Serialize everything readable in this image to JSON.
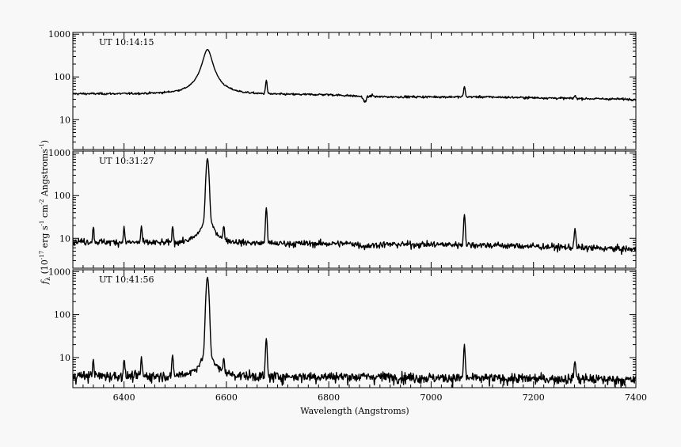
{
  "chart_data": {
    "type": "line",
    "xlabel": "Wavelength (Angstroms)",
    "ylabel": {
      "f": "f",
      "lambda": "λ",
      "open": " (10",
      "exp1": "-17",
      "mid1": " erg s",
      "exp2": "-1",
      "mid2": " cm",
      "exp3": "-2",
      "mid3": " Angstroms",
      "exp4": "-1",
      "close": ")"
    },
    "xlim": [
      6300,
      7400
    ],
    "x_ticks": [
      6400,
      6600,
      6800,
      7000,
      7200,
      7400
    ],
    "y_scale": "log",
    "y_tick_values": [
      10,
      100,
      1000
    ],
    "y_tick_labels": [
      "10",
      "100",
      "1000"
    ],
    "grid": false,
    "legend": "none",
    "panels": [
      {
        "title": "UT 10:14:15",
        "ylim": [
          2,
          1100
        ],
        "continuum": [
          [
            6300,
            40
          ],
          [
            6500,
            39
          ],
          [
            6640,
            38
          ],
          [
            6800,
            38
          ],
          [
            6860,
            35
          ],
          [
            6900,
            34
          ],
          [
            7100,
            34
          ],
          [
            7300,
            31
          ],
          [
            7400,
            30
          ]
        ],
        "lines": [
          {
            "center": 6563,
            "peak": 400,
            "width": 9,
            "shape": "lorentz"
          },
          {
            "center": 6678,
            "peak": 43,
            "width": 1.4,
            "shape": "gauss"
          },
          {
            "center": 7065,
            "peak": 26,
            "width": 1.4,
            "shape": "gauss"
          },
          {
            "center": 7281,
            "peak": 5,
            "width": 1.5,
            "shape": "gauss"
          },
          {
            "center": 6870,
            "peak": -9,
            "width": 3,
            "shape": "gauss"
          },
          {
            "center": 6885,
            "peak": 3,
            "width": 2,
            "shape": "gauss"
          }
        ],
        "noise": 0.03
      },
      {
        "title": "UT 10:31:27",
        "ylim": [
          2,
          1100
        ],
        "continuum": [
          [
            6300,
            8.5
          ],
          [
            6500,
            7.5
          ],
          [
            6700,
            7.5
          ],
          [
            6850,
            7.5
          ],
          [
            6870,
            6.5
          ],
          [
            6900,
            7.2
          ],
          [
            7000,
            7.2
          ],
          [
            7100,
            7.0
          ],
          [
            7300,
            6.0
          ],
          [
            7400,
            5.5
          ]
        ],
        "lines": [
          {
            "center": 6563,
            "peak": 700,
            "width": 2.2,
            "shape": "gauss"
          },
          {
            "center": 6563,
            "peak": 25,
            "width": 10,
            "shape": "lorentz"
          },
          {
            "center": 6678,
            "peak": 45,
            "width": 1.3,
            "shape": "gauss"
          },
          {
            "center": 7065,
            "peak": 30,
            "width": 1.3,
            "shape": "gauss"
          },
          {
            "center": 7281,
            "peak": 10,
            "width": 1.5,
            "shape": "gauss"
          },
          {
            "center": 6495,
            "peak": 11,
            "width": 1.2,
            "shape": "gauss"
          },
          {
            "center": 6400,
            "peak": 10,
            "width": 1.2,
            "shape": "gauss"
          },
          {
            "center": 6434,
            "peak": 11,
            "width": 1.2,
            "shape": "gauss"
          },
          {
            "center": 6595,
            "peak": 10,
            "width": 1.2,
            "shape": "gauss"
          },
          {
            "center": 6340,
            "peak": 10,
            "width": 1.2,
            "shape": "gauss"
          }
        ],
        "noise": 0.09
      },
      {
        "title": "UT 10:41:56",
        "ylim": [
          2,
          1100
        ],
        "continuum": [
          [
            6300,
            3.8
          ],
          [
            6500,
            3.6
          ],
          [
            6700,
            3.6
          ],
          [
            6900,
            3.6
          ],
          [
            7000,
            3.4
          ],
          [
            7100,
            3.3
          ],
          [
            7300,
            3.2
          ],
          [
            7400,
            3.0
          ]
        ],
        "lines": [
          {
            "center": 6563,
            "peak": 720,
            "width": 2.2,
            "shape": "gauss"
          },
          {
            "center": 6563,
            "peak": 12,
            "width": 10,
            "shape": "lorentz"
          },
          {
            "center": 6678,
            "peak": 24,
            "width": 1.3,
            "shape": "gauss"
          },
          {
            "center": 7065,
            "peak": 16,
            "width": 1.3,
            "shape": "gauss"
          },
          {
            "center": 7281,
            "peak": 5,
            "width": 1.5,
            "shape": "gauss"
          },
          {
            "center": 6495,
            "peak": 7,
            "width": 1.2,
            "shape": "gauss"
          },
          {
            "center": 6400,
            "peak": 5.5,
            "width": 1.2,
            "shape": "gauss"
          },
          {
            "center": 6434,
            "peak": 6,
            "width": 1.2,
            "shape": "gauss"
          },
          {
            "center": 6595,
            "peak": 5.5,
            "width": 1.2,
            "shape": "gauss"
          },
          {
            "center": 6340,
            "peak": 5.5,
            "width": 1.2,
            "shape": "gauss"
          }
        ],
        "noise": 0.14
      }
    ]
  }
}
